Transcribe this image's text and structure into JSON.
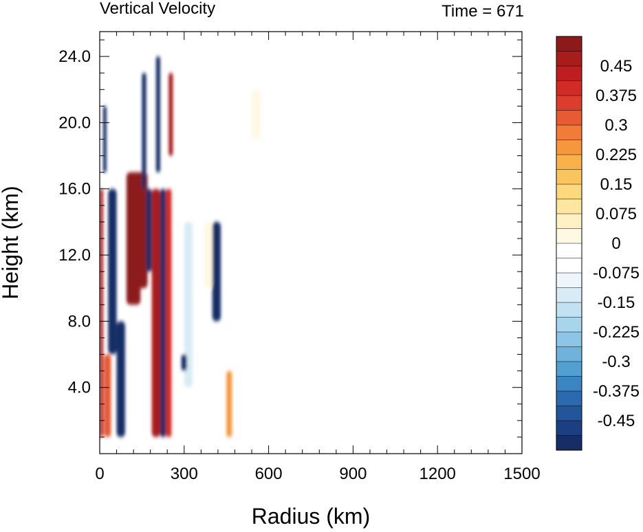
{
  "chart_data": {
    "type": "heatmap",
    "title": "Vertical Velocity",
    "subtitle": "Time = 671",
    "xlabel": "Radius (km)",
    "ylabel": "Height (km)",
    "xlim": [
      0,
      1500
    ],
    "ylim": [
      0,
      25.5
    ],
    "x_ticks": [
      0,
      300,
      600,
      900,
      1200,
      1500
    ],
    "x_tick_labels": [
      "0",
      "300",
      "600",
      "900",
      "1200",
      "1500"
    ],
    "y_ticks": [
      4,
      8,
      12,
      16,
      20,
      24
    ],
    "y_tick_labels": [
      "4.0",
      "8.0",
      "12.0",
      "16.0",
      "20.0",
      "24.0"
    ],
    "colorbar": {
      "placement": "right",
      "min": -0.525,
      "max": 0.525,
      "step": 0.025,
      "label_values": [
        0.45,
        0.375,
        0.3,
        0.225,
        0.15,
        0.075,
        0,
        -0.075,
        -0.15,
        -0.225,
        -0.3,
        -0.375,
        -0.45
      ],
      "labels": [
        "0.45",
        "0.375",
        "0.3",
        "0.225",
        "0.15",
        "0.075",
        "0",
        "-0.075",
        "-0.15",
        "-0.225",
        "-0.3",
        "-0.375",
        "-0.45"
      ],
      "colors_top_to_bottom": [
        "#8c1a1a",
        "#a81c1c",
        "#bf1e21",
        "#d12b26",
        "#dd3d2d",
        "#e65a34",
        "#f07c38",
        "#f5983d",
        "#f9b24a",
        "#fbc55e",
        "#fdd87d",
        "#fde6a0",
        "#fff1c4",
        "#fff8e2",
        "#ffffff",
        "#ffffff",
        "#eef6fb",
        "#d8ecf6",
        "#c2e1f1",
        "#a8d4ec",
        "#8cc5e5",
        "#6fb2dc",
        "#529fd1",
        "#3a85c2",
        "#2b6aae",
        "#22559a",
        "#1c3f82",
        "#172d66"
      ]
    },
    "features": [
      {
        "x0": 0,
        "x1": 12,
        "y0": 1,
        "y1": 16,
        "value": 0.5
      },
      {
        "x0": 12,
        "x1": 24,
        "y0": 17,
        "y1": 21,
        "value": -0.3
      },
      {
        "x0": 30,
        "x1": 60,
        "y0": 6,
        "y1": 16,
        "value": -0.45
      },
      {
        "x0": 15,
        "x1": 40,
        "y0": 1,
        "y1": 6,
        "value": 0.4
      },
      {
        "x0": 60,
        "x1": 90,
        "y0": 1,
        "y1": 8,
        "value": -0.5
      },
      {
        "x0": 95,
        "x1": 145,
        "y0": 9,
        "y1": 17,
        "value": 0.52
      },
      {
        "x0": 120,
        "x1": 170,
        "y0": 10,
        "y1": 17,
        "value": 0.52
      },
      {
        "x0": 150,
        "x1": 165,
        "y0": 16,
        "y1": 23,
        "value": -0.35
      },
      {
        "x0": 165,
        "x1": 185,
        "y0": 11,
        "y1": 16,
        "value": -0.5
      },
      {
        "x0": 185,
        "x1": 215,
        "y0": 1,
        "y1": 16,
        "value": 0.5
      },
      {
        "x0": 200,
        "x1": 215,
        "y0": 17,
        "y1": 24,
        "value": -0.5
      },
      {
        "x0": 215,
        "x1": 235,
        "y0": 1,
        "y1": 16,
        "value": -0.5
      },
      {
        "x0": 235,
        "x1": 255,
        "y0": 1,
        "y1": 16,
        "value": 0.45
      },
      {
        "x0": 245,
        "x1": 260,
        "y0": 18,
        "y1": 23,
        "value": 0.5
      },
      {
        "x0": 300,
        "x1": 330,
        "y0": 4,
        "y1": 14,
        "value": 0.1
      },
      {
        "x0": 400,
        "x1": 430,
        "y0": 8,
        "y1": 14,
        "value": -0.35
      },
      {
        "x0": 370,
        "x1": 400,
        "y0": 10,
        "y1": 14,
        "value": 0.2
      },
      {
        "x0": 450,
        "x1": 470,
        "y0": 1,
        "y1": 5,
        "value": 0.35
      },
      {
        "x0": 540,
        "x1": 570,
        "y0": 19,
        "y1": 22,
        "value": 0.2
      },
      {
        "x0": 290,
        "x1": 310,
        "y0": 5,
        "y1": 6,
        "value": -0.2
      }
    ]
  }
}
